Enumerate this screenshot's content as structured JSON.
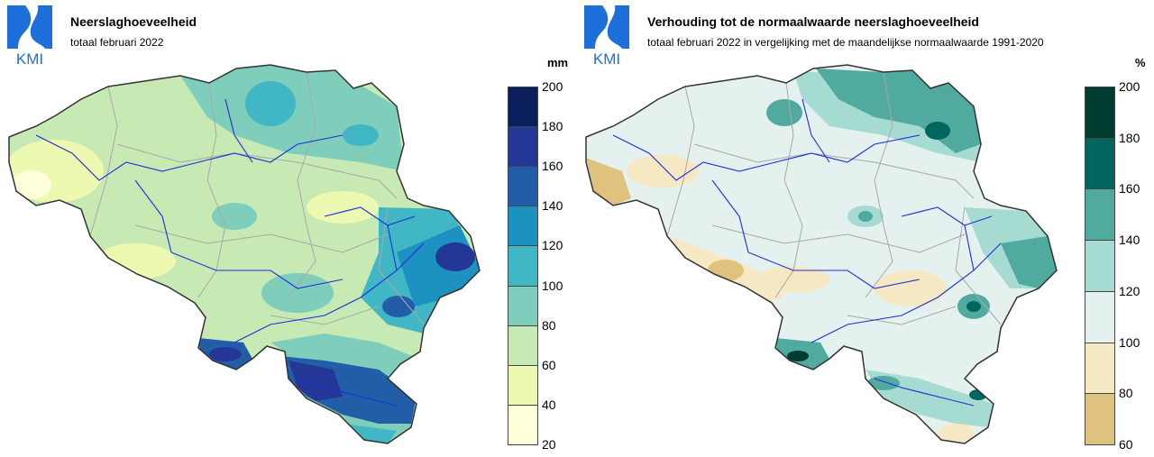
{
  "left": {
    "logo_text": "KMI",
    "title": "Neerslaghoeveelheid",
    "subtitle": "totaal februari 2022",
    "unit": "mm",
    "legend": {
      "ticks": [
        "200",
        "180",
        "160",
        "140",
        "120",
        "100",
        "80",
        "60",
        "40",
        "20"
      ],
      "colors": [
        "#0b1f5c",
        "#253796",
        "#225ea8",
        "#1d91c0",
        "#41b6c4",
        "#7fcdbb",
        "#c7e9b4",
        "#edf8b1",
        "#ffffd9"
      ]
    }
  },
  "right": {
    "logo_text": "KMI",
    "title": "Verhouding tot de normaalwaarde neerslaghoeveelheid",
    "subtitle": "totaal februari 2022 in vergelijking met de maandelijkse normaalwaarde 1991-2020",
    "unit": "%",
    "legend": {
      "ticks": [
        "200",
        "180",
        "160",
        "140",
        "120",
        "100",
        "80",
        "60"
      ],
      "colors": [
        "#003c30",
        "#01665e",
        "#51aaa0",
        "#a6dbd2",
        "#e4f1ef",
        "#f6e8c3",
        "#dfc27d"
      ]
    }
  }
}
